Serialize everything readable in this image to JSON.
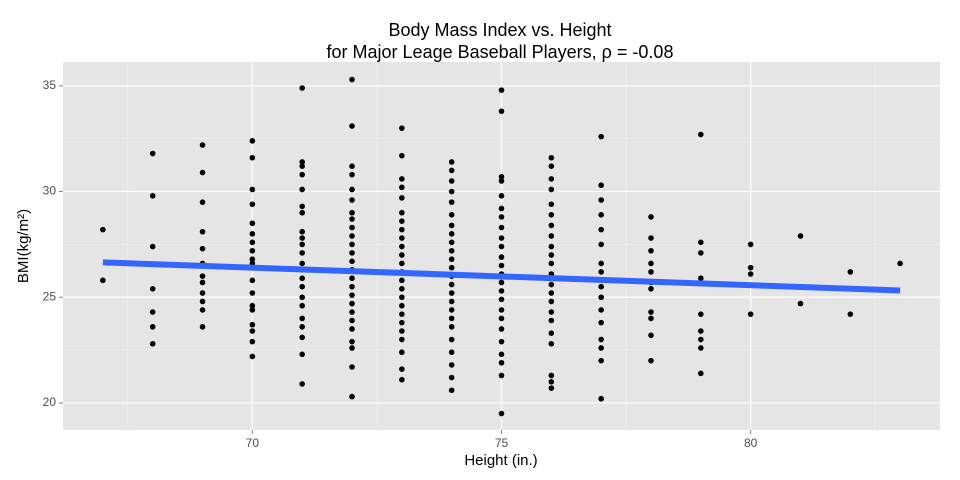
{
  "chart_data": {
    "type": "scatter",
    "title": "Body Mass Index vs. Height",
    "subtitle": "for Major Leage Baseball Players, ρ = -0.08",
    "x_label": "Height (in.)",
    "y_label": "BMI(kg/m²)",
    "color": "#000000",
    "x": [
      67,
      67,
      68,
      68,
      68,
      68,
      68,
      68,
      68,
      69,
      69,
      69,
      69,
      69,
      69,
      69,
      69,
      69,
      69,
      69,
      69,
      70,
      70,
      70,
      70,
      70,
      70,
      70,
      70,
      70,
      70,
      70,
      70,
      70,
      70,
      70,
      70,
      70,
      70,
      70,
      71,
      71,
      71,
      71,
      71,
      71,
      71,
      71,
      71,
      71,
      71,
      71,
      71,
      71,
      71,
      71,
      71,
      71,
      71,
      71,
      71,
      71,
      72,
      72,
      72,
      72,
      72,
      72,
      72,
      72,
      72,
      72,
      72,
      72,
      72,
      72,
      72,
      72,
      72,
      72,
      72,
      72,
      72,
      72,
      72,
      72,
      72,
      73,
      73,
      73,
      73,
      73,
      73,
      73,
      73,
      73,
      73,
      73,
      73,
      73,
      73,
      73,
      73,
      73,
      73,
      73,
      73,
      73,
      73,
      73,
      73,
      74,
      74,
      74,
      74,
      74,
      74,
      74,
      74,
      74,
      74,
      74,
      74,
      74,
      74,
      74,
      74,
      74,
      74,
      74,
      74,
      74,
      74,
      74,
      74,
      75,
      75,
      75,
      75,
      75,
      75,
      75,
      75,
      75,
      75,
      75,
      75,
      75,
      75,
      75,
      75,
      75,
      75,
      75,
      75,
      75,
      75,
      75,
      75,
      76,
      76,
      76,
      76,
      76,
      76,
      76,
      76,
      76,
      76,
      76,
      76,
      76,
      76,
      76,
      76,
      76,
      76,
      76,
      76,
      76,
      76,
      77,
      77,
      77,
      77,
      77,
      77,
      77,
      77,
      77,
      77,
      77,
      77,
      77,
      77,
      77,
      77,
      78,
      78,
      78,
      78,
      78,
      78,
      78,
      78,
      78,
      78,
      78,
      79,
      79,
      79,
      79,
      79,
      79,
      79,
      79,
      79,
      80,
      80,
      80,
      80,
      81,
      81,
      82,
      82,
      83
    ],
    "values": [
      28.2,
      25.8,
      31.8,
      29.8,
      27.4,
      25.4,
      24.3,
      23.6,
      22.8,
      32.2,
      30.9,
      29.5,
      28.1,
      27.3,
      26.6,
      26.0,
      25.7,
      25.2,
      24.8,
      24.4,
      23.6,
      32.4,
      31.6,
      30.1,
      29.4,
      28.5,
      28.0,
      27.6,
      27.2,
      26.8,
      26.6,
      26.4,
      25.8,
      25.2,
      24.6,
      24.4,
      23.7,
      23.4,
      22.9,
      22.2,
      34.9,
      31.4,
      31.2,
      30.8,
      30.1,
      29.3,
      29.0,
      28.1,
      27.8,
      27.5,
      27.1,
      26.6,
      26.3,
      25.9,
      25.5,
      25.0,
      24.6,
      24.0,
      23.6,
      23.1,
      22.3,
      20.9,
      35.3,
      33.1,
      31.2,
      30.8,
      30.1,
      29.6,
      29.0,
      28.7,
      28.3,
      27.9,
      27.5,
      27.1,
      26.7,
      26.3,
      25.9,
      25.5,
      25.1,
      24.7,
      24.3,
      23.9,
      23.5,
      22.9,
      22.6,
      21.7,
      20.3,
      33.0,
      31.7,
      30.6,
      30.2,
      29.7,
      29.0,
      28.6,
      28.2,
      27.8,
      27.4,
      27.0,
      26.6,
      26.2,
      25.8,
      25.4,
      25.0,
      24.6,
      24.2,
      23.8,
      23.4,
      23.0,
      22.4,
      21.6,
      21.1,
      31.4,
      31.0,
      30.5,
      30.0,
      29.5,
      28.9,
      28.4,
      28.0,
      27.6,
      27.2,
      26.8,
      26.4,
      26.0,
      25.6,
      25.2,
      24.8,
      24.4,
      24.0,
      23.6,
      23.0,
      22.4,
      21.8,
      21.2,
      20.6,
      34.8,
      33.8,
      30.7,
      30.5,
      29.8,
      29.2,
      28.8,
      28.3,
      27.8,
      27.4,
      26.9,
      26.5,
      26.1,
      25.7,
      25.3,
      24.9,
      24.4,
      24.0,
      23.5,
      22.9,
      22.3,
      21.9,
      21.3,
      19.5,
      31.6,
      31.2,
      30.6,
      30.1,
      29.4,
      28.9,
      28.4,
      27.9,
      27.4,
      27.0,
      26.6,
      26.1,
      25.6,
      25.2,
      24.8,
      24.3,
      23.9,
      23.3,
      22.8,
      21.3,
      21.0,
      20.7,
      32.6,
      30.3,
      29.6,
      28.9,
      28.2,
      27.5,
      26.6,
      26.2,
      25.5,
      25.0,
      24.4,
      23.8,
      23.0,
      22.6,
      22.0,
      20.2,
      28.8,
      27.8,
      27.2,
      26.6,
      26.2,
      25.7,
      25.4,
      24.3,
      24.0,
      23.2,
      22.0,
      32.7,
      27.6,
      27.1,
      25.9,
      24.2,
      23.4,
      23.0,
      22.6,
      21.4,
      27.5,
      26.4,
      26.1,
      24.2,
      27.9,
      24.7,
      26.2,
      24.2,
      26.6
    ],
    "fit": {
      "x": [
        67,
        83
      ],
      "values": [
        26.65,
        25.32
      ],
      "color": "#3366ff"
    },
    "xlim": [
      66.2,
      83.8
    ],
    "ylim": [
      18.72,
      36.13
    ],
    "xticks": [
      70,
      75,
      80
    ],
    "yticks": [
      20,
      25,
      30,
      35
    ],
    "minor_xticks": [
      67.5,
      72.5,
      77.5,
      82.5
    ],
    "minor_yticks": [
      22.5,
      27.5,
      32.5
    ],
    "grid": true
  }
}
